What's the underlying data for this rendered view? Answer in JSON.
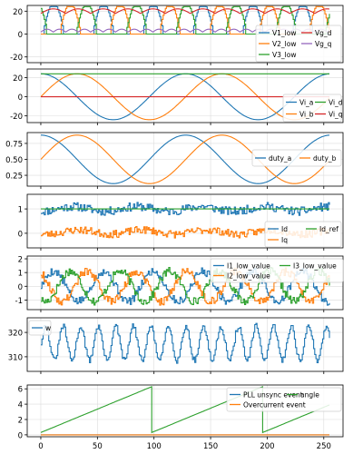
{
  "chart_data": [
    {
      "type": "line",
      "ylim": [
        -25,
        25
      ],
      "yticks": [
        -20,
        0,
        20
      ],
      "xlim": [
        -12,
        267
      ],
      "grid": true,
      "legend": {
        "placement": "bottom-right",
        "columns": 2,
        "entries": [
          "V1_low",
          "V2_low",
          "V3_low",
          "Vg_d",
          "Vg_q"
        ]
      },
      "series": [
        {
          "name": "V1_low",
          "color": "#1f77b4",
          "kind": "phase_rectified",
          "phase_deg": 0,
          "high": 24,
          "low": 0,
          "period": 44
        },
        {
          "name": "V2_low",
          "color": "#ff7f0e",
          "kind": "phase_rectified",
          "phase_deg": 120,
          "high": 24,
          "low": 0,
          "period": 44
        },
        {
          "name": "V3_low",
          "color": "#2ca02c",
          "kind": "phase_rectified",
          "phase_deg": 240,
          "high": 24,
          "low": 0,
          "period": 44
        },
        {
          "name": "Vg_d",
          "color": "#d62728",
          "kind": "ripple",
          "base": 20,
          "amp": 4,
          "period": 44
        },
        {
          "name": "Vg_q",
          "color": "#9467bd",
          "kind": "ripple",
          "base": 3,
          "amp": 2.5,
          "period": 22
        }
      ]
    },
    {
      "type": "line",
      "ylim": [
        -27,
        29
      ],
      "yticks": [
        -20,
        0,
        20
      ],
      "xlim": [
        -12,
        267
      ],
      "grid": true,
      "legend": {
        "placement": "bottom-right",
        "columns": 2,
        "entries": [
          "Vi_a",
          "Vi_b",
          "Vi_d",
          "Vi_q"
        ]
      },
      "series": [
        {
          "name": "Vi_a",
          "color": "#1f77b4",
          "kind": "sine",
          "amp": 24,
          "period": 128,
          "phase_deg": 90,
          "offset": 0
        },
        {
          "name": "Vi_b",
          "color": "#ff7f0e",
          "kind": "sine",
          "amp": 24,
          "period": 128,
          "phase_deg": 0,
          "offset": 0
        },
        {
          "name": "Vi_d",
          "color": "#2ca02c",
          "kind": "const",
          "value": 24
        },
        {
          "name": "Vi_q",
          "color": "#d62728",
          "kind": "const",
          "value": 0
        }
      ]
    },
    {
      "type": "line",
      "ylim": [
        0.08,
        0.92
      ],
      "yticks": [
        0.25,
        0.5,
        0.75
      ],
      "ytick_labels": [
        "0.25",
        "0.50",
        "0.75"
      ],
      "xlim": [
        -12,
        267
      ],
      "grid": true,
      "legend": {
        "placement": "right",
        "columns": 2,
        "entries": [
          "duty_a",
          "duty_b"
        ]
      },
      "series": [
        {
          "name": "duty_a",
          "color": "#1f77b4",
          "kind": "sine",
          "amp": 0.38,
          "period": 128,
          "phase_deg": 90,
          "offset": 0.5
        },
        {
          "name": "duty_b",
          "color": "#ff7f0e",
          "kind": "sine",
          "amp": 0.38,
          "period": 128,
          "phase_deg": 0,
          "offset": 0.5
        }
      ]
    },
    {
      "type": "line",
      "ylim": [
        -0.6,
        1.6
      ],
      "yticks": [
        0,
        1
      ],
      "xlim": [
        -12,
        267
      ],
      "grid": true,
      "legend": {
        "placement": "bottom-right",
        "columns": 2,
        "entries": [
          "Id",
          "Iq",
          "Id_ref"
        ]
      },
      "series": [
        {
          "name": "Id",
          "color": "#1f77b4",
          "kind": "noise",
          "base": 1.0,
          "amp": 0.25,
          "seed": 11
        },
        {
          "name": "Iq",
          "color": "#ff7f0e",
          "kind": "noise",
          "base": 0.05,
          "amp": 0.22,
          "seed": 23
        },
        {
          "name": "Id_ref",
          "color": "#2ca02c",
          "kind": "const",
          "value": 1.0
        }
      ]
    },
    {
      "type": "line",
      "ylim": [
        -1.7,
        2.2
      ],
      "yticks": [
        -1,
        0,
        1,
        2
      ],
      "xlim": [
        -12,
        267
      ],
      "grid": true,
      "legend": {
        "placement": "top-right",
        "columns": 2,
        "entries": [
          "I1_low_value",
          "I2_low_value",
          "I3_low_value"
        ]
      },
      "series": [
        {
          "name": "I1_low_value",
          "color": "#1f77b4",
          "kind": "noisy_sine",
          "amp": 1.1,
          "period": 44,
          "phase_deg": 0,
          "noise": 0.3,
          "seed": 5
        },
        {
          "name": "I2_low_value",
          "color": "#ff7f0e",
          "kind": "noisy_sine",
          "amp": 1.1,
          "period": 44,
          "phase_deg": 120,
          "noise": 0.3,
          "seed": 9
        },
        {
          "name": "I3_low_value",
          "color": "#2ca02c",
          "kind": "noisy_sine",
          "amp": 1.1,
          "period": 44,
          "phase_deg": 240,
          "noise": 0.3,
          "seed": 17
        }
      ]
    },
    {
      "type": "line",
      "ylim": [
        304,
        326
      ],
      "yticks": [
        310,
        320
      ],
      "xlim": [
        -12,
        267
      ],
      "grid": true,
      "legend": {
        "placement": "top-left",
        "columns": 1,
        "entries": [
          "w"
        ]
      },
      "series": [
        {
          "name": "w",
          "color": "#1f77b4",
          "kind": "noisy_sine",
          "amp": 7,
          "period": 15.5,
          "phase_deg": 0,
          "noise": 1.2,
          "seed": 31,
          "offset": 315.5
        }
      ]
    },
    {
      "type": "line",
      "ylim": [
        -0.25,
        6.5
      ],
      "yticks": [
        0,
        2,
        4,
        6
      ],
      "xlim": [
        -12,
        267
      ],
      "xticks": [
        0,
        50,
        100,
        150,
        200,
        250
      ],
      "grid": true,
      "legend": {
        "placement": "top-right",
        "columns": 2,
        "entries": [
          "PLL unsync event",
          "Overcurrent event",
          "angle"
        ]
      },
      "series": [
        {
          "name": "PLL unsync event",
          "color": "#1f77b4",
          "kind": "const",
          "value": 0
        },
        {
          "name": "Overcurrent event",
          "color": "#ff7f0e",
          "kind": "const",
          "value": 0
        },
        {
          "name": "angle",
          "color": "#2ca02c",
          "kind": "sawtooth",
          "start": 0.3,
          "max": 6.28,
          "period": 98
        }
      ]
    }
  ]
}
